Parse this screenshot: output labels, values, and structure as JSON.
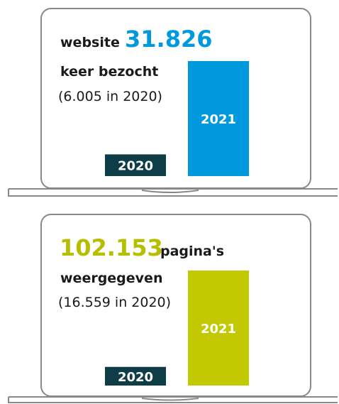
{
  "chart_data": [
    {
      "type": "bar",
      "headline": [
        "website",
        "31.826",
        "keer bezocht"
      ],
      "note": "(6.005 in 2020)",
      "categories": [
        "2020",
        "2021"
      ],
      "values": [
        6005,
        31826
      ],
      "colors": [
        "#0e3d47",
        "#0099dd"
      ],
      "accent": "#0099dd"
    },
    {
      "type": "bar",
      "headline": [
        "102.153",
        "pagina's",
        "weergegeven"
      ],
      "note": "(16.559 in 2020)",
      "categories": [
        "2020",
        "2021"
      ],
      "values": [
        16559,
        102153
      ],
      "colors": [
        "#0e3d47",
        "#c3c900"
      ],
      "accent": "#b5bf00"
    }
  ]
}
